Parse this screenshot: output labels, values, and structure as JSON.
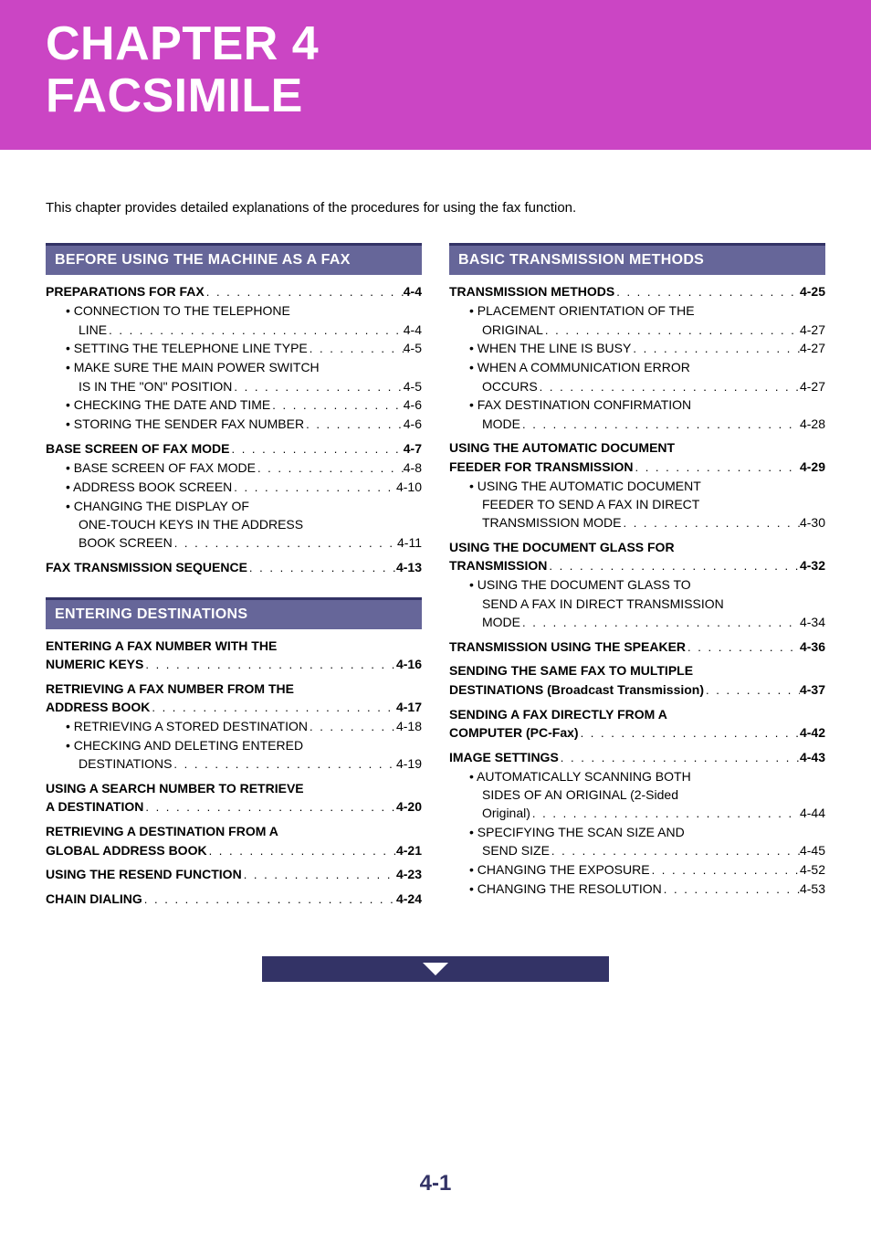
{
  "header": {
    "line1": "CHAPTER 4",
    "line2": "FACSIMILE",
    "bg_color": "#cb45c4"
  },
  "intro": "This chapter provides detailed explanations of the procedures for using the fax function.",
  "page_number": "4-1",
  "section_header_bg": "#666699",
  "section_header_border": "#333366",
  "continuation_bg": "#333366",
  "left_sections": [
    {
      "title": "BEFORE USING THE MACHINE AS A FAX",
      "items": [
        {
          "label": "PREPARATIONS FOR FAX",
          "page": "4-4",
          "bold": true,
          "indent": 0
        },
        {
          "label": "• CONNECTION TO THE TELEPHONE",
          "page": "",
          "bold": false,
          "indent": 1,
          "nowrap": true
        },
        {
          "label": "LINE",
          "page": "4-4",
          "bold": false,
          "indent": 2
        },
        {
          "label": "• SETTING THE TELEPHONE LINE TYPE",
          "page": "4-5",
          "bold": false,
          "indent": 1
        },
        {
          "label": "• MAKE SURE THE MAIN POWER SWITCH",
          "page": "",
          "bold": false,
          "indent": 1,
          "nowrap": true
        },
        {
          "label": "IS IN THE \"ON\" POSITION",
          "page": "4-5",
          "bold": false,
          "indent": 2
        },
        {
          "label": "• CHECKING THE DATE AND TIME",
          "page": "4-6",
          "bold": false,
          "indent": 1
        },
        {
          "label": "• STORING THE SENDER FAX NUMBER",
          "page": "4-6",
          "bold": false,
          "indent": 1
        },
        {
          "label": "BASE SCREEN OF FAX MODE",
          "page": "4-7",
          "bold": true,
          "indent": 0,
          "gap_before": true
        },
        {
          "label": "• BASE SCREEN OF FAX MODE",
          "page": "4-8",
          "bold": false,
          "indent": 1
        },
        {
          "label": "• ADDRESS BOOK SCREEN",
          "page": "4-10",
          "bold": false,
          "indent": 1
        },
        {
          "label": "• CHANGING THE DISPLAY OF",
          "page": "",
          "bold": false,
          "indent": 1,
          "nowrap": true
        },
        {
          "label": "ONE-TOUCH KEYS IN THE ADDRESS",
          "page": "",
          "bold": false,
          "indent": 2,
          "nowrap": true
        },
        {
          "label": "BOOK SCREEN",
          "page": "4-11",
          "bold": false,
          "indent": 2
        },
        {
          "label": "FAX TRANSMISSION SEQUENCE",
          "page": "4-13",
          "bold": true,
          "indent": 0,
          "gap_before": true
        }
      ]
    },
    {
      "title": "ENTERING DESTINATIONS",
      "items": [
        {
          "label": "ENTERING A FAX NUMBER WITH THE",
          "page": "",
          "bold": true,
          "indent": 0,
          "nowrap": true
        },
        {
          "label": "NUMERIC KEYS",
          "page": "4-16",
          "bold": true,
          "indent": 0
        },
        {
          "label": "RETRIEVING A FAX NUMBER FROM THE",
          "page": "",
          "bold": true,
          "indent": 0,
          "nowrap": true,
          "gap_before": true
        },
        {
          "label": "ADDRESS BOOK",
          "page": "4-17",
          "bold": true,
          "indent": 0
        },
        {
          "label": "• RETRIEVING A STORED DESTINATION",
          "page": "4-18",
          "bold": false,
          "indent": 1
        },
        {
          "label": "• CHECKING AND DELETING ENTERED",
          "page": "",
          "bold": false,
          "indent": 1,
          "nowrap": true
        },
        {
          "label": "DESTINATIONS",
          "page": "4-19",
          "bold": false,
          "indent": 2
        },
        {
          "label": "USING A SEARCH NUMBER TO RETRIEVE",
          "page": "",
          "bold": true,
          "indent": 0,
          "nowrap": true,
          "gap_before": true
        },
        {
          "label": "A DESTINATION",
          "page": "4-20",
          "bold": true,
          "indent": 0
        },
        {
          "label": "RETRIEVING A DESTINATION FROM A",
          "page": "",
          "bold": true,
          "indent": 0,
          "nowrap": true,
          "gap_before": true
        },
        {
          "label": "GLOBAL ADDRESS BOOK",
          "page": "4-21",
          "bold": true,
          "indent": 0
        },
        {
          "label": "USING THE RESEND FUNCTION",
          "page": "4-23",
          "bold": true,
          "indent": 0,
          "gap_before": true
        },
        {
          "label": "CHAIN DIALING",
          "page": "4-24",
          "bold": true,
          "indent": 0,
          "gap_before": true
        }
      ]
    }
  ],
  "right_sections": [
    {
      "title": "BASIC TRANSMISSION METHODS",
      "items": [
        {
          "label": "TRANSMISSION METHODS",
          "page": "4-25",
          "bold": true,
          "indent": 0
        },
        {
          "label": "• PLACEMENT ORIENTATION OF THE",
          "page": "",
          "bold": false,
          "indent": 1,
          "nowrap": true
        },
        {
          "label": "ORIGINAL",
          "page": "4-27",
          "bold": false,
          "indent": 2
        },
        {
          "label": "• WHEN THE LINE IS BUSY",
          "page": "4-27",
          "bold": false,
          "indent": 1
        },
        {
          "label": "• WHEN A COMMUNICATION ERROR",
          "page": "",
          "bold": false,
          "indent": 1,
          "nowrap": true
        },
        {
          "label": "OCCURS",
          "page": "4-27",
          "bold": false,
          "indent": 2
        },
        {
          "label": "• FAX DESTINATION CONFIRMATION",
          "page": "",
          "bold": false,
          "indent": 1,
          "nowrap": true
        },
        {
          "label": "MODE",
          "page": "4-28",
          "bold": false,
          "indent": 2
        },
        {
          "label": "USING THE AUTOMATIC DOCUMENT",
          "page": "",
          "bold": true,
          "indent": 0,
          "nowrap": true,
          "gap_before": true
        },
        {
          "label": "FEEDER FOR TRANSMISSION",
          "page": "4-29",
          "bold": true,
          "indent": 0
        },
        {
          "label": "• USING THE AUTOMATIC DOCUMENT",
          "page": "",
          "bold": false,
          "indent": 1,
          "nowrap": true
        },
        {
          "label": "FEEDER TO SEND A FAX IN DIRECT",
          "page": "",
          "bold": false,
          "indent": 2,
          "nowrap": true
        },
        {
          "label": "TRANSMISSION MODE",
          "page": "4-30",
          "bold": false,
          "indent": 2
        },
        {
          "label": "USING THE DOCUMENT GLASS FOR",
          "page": "",
          "bold": true,
          "indent": 0,
          "nowrap": true,
          "gap_before": true
        },
        {
          "label": "TRANSMISSION",
          "page": "4-32",
          "bold": true,
          "indent": 0
        },
        {
          "label": "• USING THE DOCUMENT GLASS TO",
          "page": "",
          "bold": false,
          "indent": 1,
          "nowrap": true
        },
        {
          "label": "SEND A FAX IN DIRECT TRANSMISSION",
          "page": "",
          "bold": false,
          "indent": 2,
          "nowrap": true
        },
        {
          "label": "MODE",
          "page": "4-34",
          "bold": false,
          "indent": 2
        },
        {
          "label": "TRANSMISSION USING THE SPEAKER",
          "page": "4-36",
          "bold": true,
          "indent": 0,
          "gap_before": true
        },
        {
          "label": "SENDING THE SAME FAX TO MULTIPLE",
          "page": "",
          "bold": true,
          "indent": 0,
          "nowrap": true,
          "gap_before": true
        },
        {
          "label": "DESTINATIONS (Broadcast Transmission)",
          "page": "4-37",
          "bold": true,
          "indent": 0
        },
        {
          "label": "SENDING A FAX DIRECTLY FROM A",
          "page": "",
          "bold": true,
          "indent": 0,
          "nowrap": true,
          "gap_before": true
        },
        {
          "label": "COMPUTER (PC-Fax)",
          "page": "4-42",
          "bold": true,
          "indent": 0
        },
        {
          "label": "IMAGE SETTINGS",
          "page": "4-43",
          "bold": true,
          "indent": 0,
          "gap_before": true
        },
        {
          "label": "• AUTOMATICALLY SCANNING BOTH",
          "page": "",
          "bold": false,
          "indent": 1,
          "nowrap": true
        },
        {
          "label": "SIDES OF AN ORIGINAL (2-Sided",
          "page": "",
          "bold": false,
          "indent": 2,
          "nowrap": true
        },
        {
          "label": "Original)",
          "page": "4-44",
          "bold": false,
          "indent": 2
        },
        {
          "label": "• SPECIFYING THE SCAN SIZE AND",
          "page": "",
          "bold": false,
          "indent": 1,
          "nowrap": true
        },
        {
          "label": "SEND SIZE",
          "page": "4-45",
          "bold": false,
          "indent": 2
        },
        {
          "label": "• CHANGING THE EXPOSURE",
          "page": "4-52",
          "bold": false,
          "indent": 1
        },
        {
          "label": "• CHANGING THE RESOLUTION",
          "page": "4-53",
          "bold": false,
          "indent": 1
        }
      ]
    }
  ]
}
